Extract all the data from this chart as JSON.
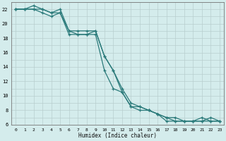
{
  "xlabel": "Humidex (Indice chaleur)",
  "bg_color": "#d4ecec",
  "line_color": "#2a7a7a",
  "grid_color": "#b8cece",
  "xlim": [
    -0.5,
    23.5
  ],
  "ylim": [
    6,
    23
  ],
  "xticks": [
    0,
    1,
    2,
    3,
    4,
    5,
    6,
    7,
    8,
    9,
    10,
    11,
    12,
    13,
    14,
    15,
    16,
    17,
    18,
    19,
    20,
    21,
    22,
    23
  ],
  "yticks": [
    6,
    8,
    10,
    12,
    14,
    16,
    18,
    20,
    22
  ],
  "line1_x": [
    0,
    1,
    2,
    3,
    4,
    5,
    6,
    7,
    8,
    9,
    10,
    11,
    12,
    13,
    14,
    15,
    16,
    17,
    18,
    19,
    20,
    21,
    22,
    23
  ],
  "line1_y": [
    22,
    22,
    22,
    22,
    21.5,
    21.5,
    19,
    18.5,
    18.5,
    19,
    15.5,
    13.5,
    11,
    9.0,
    8.5,
    8.0,
    7.5,
    7.0,
    6.5,
    6.5,
    6.5,
    6.5,
    6.5,
    6.5
  ],
  "line2_x": [
    0,
    1,
    2,
    3,
    4,
    5,
    6,
    7,
    8,
    9,
    10,
    11,
    12,
    13,
    14,
    15,
    16,
    17,
    18,
    19,
    20,
    21,
    22,
    23
  ],
  "line2_y": [
    22,
    22,
    22.5,
    22,
    21.5,
    22,
    19,
    19,
    19,
    19,
    15.5,
    13.5,
    10.5,
    8.5,
    8.5,
    8.0,
    7.5,
    7.0,
    7.0,
    6.5,
    6.5,
    7.0,
    6.5,
    6.5
  ],
  "line3_x": [
    0,
    1,
    2,
    3,
    4,
    5,
    6,
    7,
    8,
    9,
    10,
    11,
    12,
    13,
    14,
    15,
    16,
    17,
    18,
    19,
    20,
    21,
    22,
    23
  ],
  "line3_y": [
    22,
    22,
    22,
    21.5,
    21,
    21.5,
    18.5,
    18.5,
    18.5,
    18.5,
    13.5,
    11,
    10.5,
    8.5,
    8.0,
    8.0,
    7.5,
    6.5,
    6.5,
    6.5,
    6.5,
    6.5,
    7.0,
    6.5
  ]
}
